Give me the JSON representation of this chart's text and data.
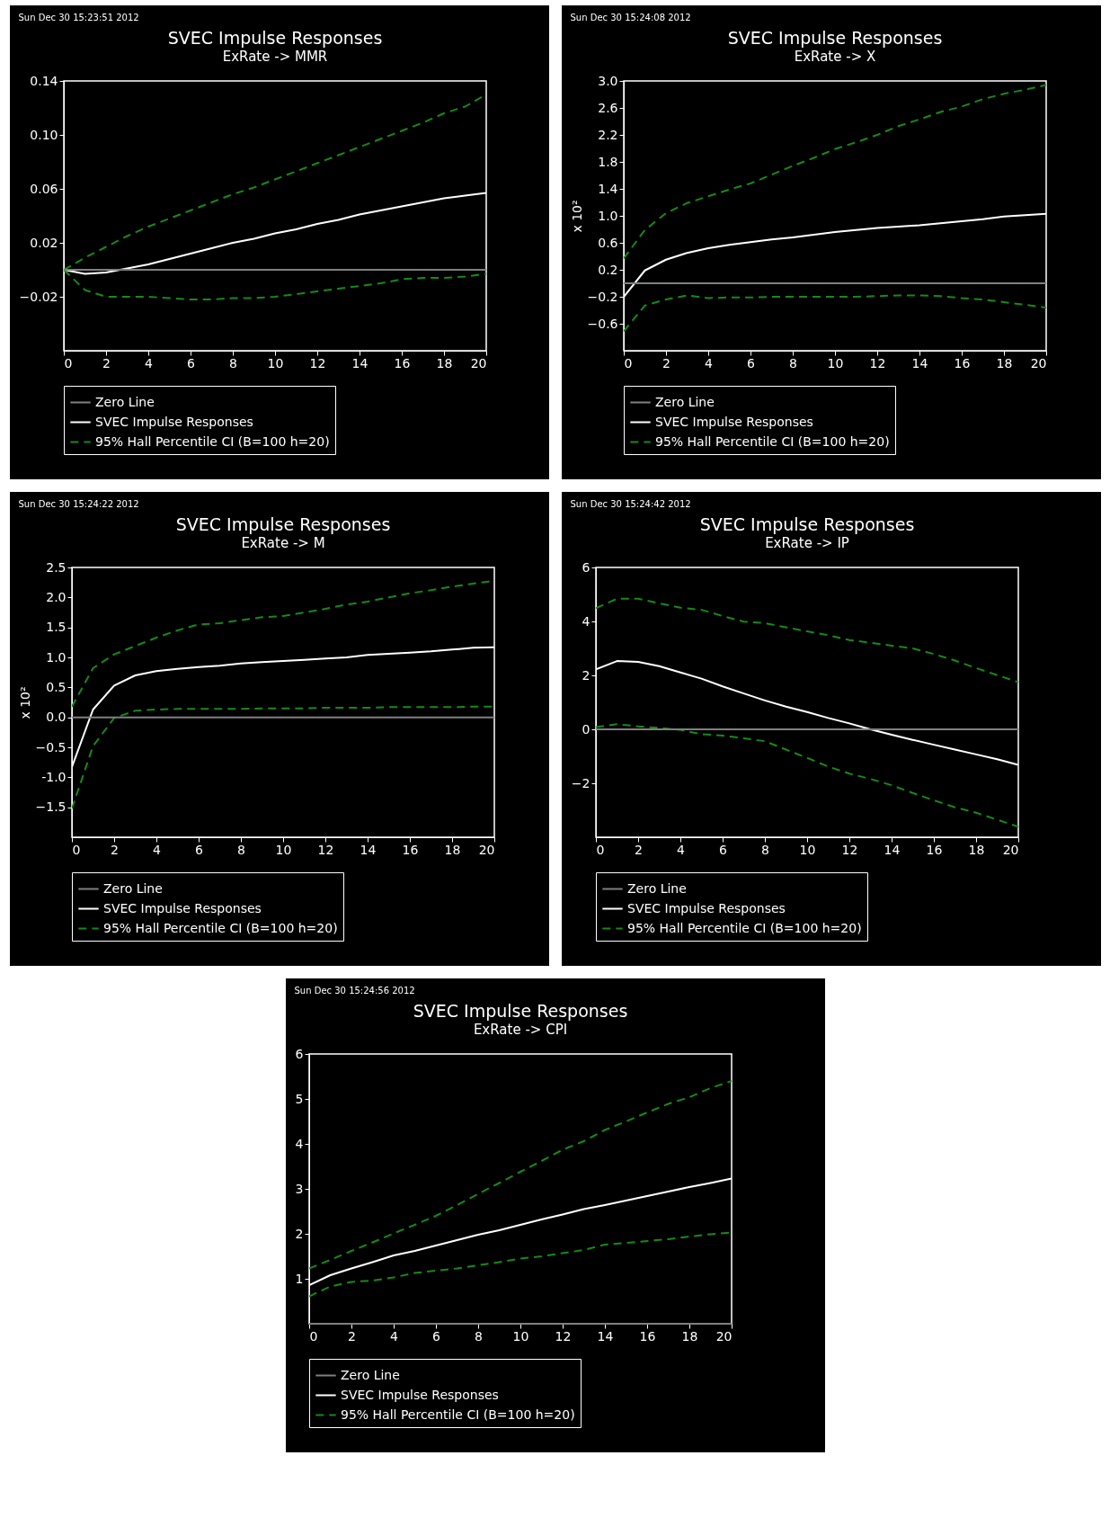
{
  "chart_data": [
    {
      "type": "line",
      "title": "SVEC Impulse Responses",
      "subtitle": "ExRate -> MMR",
      "annotations": [
        "Sun Dec 30 15:23:51 2012"
      ],
      "x": [
        0,
        1,
        2,
        3,
        4,
        5,
        6,
        7,
        8,
        9,
        10,
        11,
        12,
        13,
        14,
        15,
        16,
        17,
        18,
        19,
        20
      ],
      "xlim": [
        0,
        20
      ],
      "xticks": [
        0,
        2,
        4,
        6,
        8,
        10,
        12,
        14,
        16,
        18,
        20
      ],
      "ylim": [
        -0.06,
        0.14
      ],
      "yticks": [
        -0.02,
        0.02,
        0.06,
        {
          "value": 0.1,
          "label": "0.10"
        },
        0.14
      ],
      "legend": "bottom",
      "ref_lines": [
        {
          "axis": "y",
          "value": 0,
          "label": "Zero Line",
          "color": "#808080"
        }
      ],
      "series": [
        {
          "name": "SVEC Impulse Responses",
          "color": "#ffffff",
          "line_style": "solid",
          "values": [
            0,
            -0.003,
            -0.002,
            0.001,
            0.004,
            0.008,
            0.012,
            0.016,
            0.02,
            0.023,
            0.027,
            0.03,
            0.034,
            0.037,
            0.041,
            0.044,
            0.047,
            0.05,
            0.053,
            0.055,
            0.057
          ]
        },
        {
          "name": "95% Hall Percentile CI (B=100 h=20)",
          "color": "#178a17",
          "line_style": "dashed",
          "values": [
            0,
            0.009,
            0.017,
            0.025,
            0.032,
            0.038,
            0.044,
            0.05,
            0.056,
            0.061,
            0.067,
            0.073,
            0.079,
            0.085,
            0.091,
            0.097,
            0.103,
            0.109,
            0.116,
            0.121,
            0.13
          ]
        },
        {
          "color": "#178a17",
          "line_style": "dashed",
          "values": [
            0,
            -0.015,
            -0.02,
            -0.02,
            -0.02,
            -0.021,
            -0.022,
            -0.022,
            -0.021,
            -0.021,
            -0.02,
            -0.018,
            -0.016,
            -0.014,
            -0.012,
            -0.01,
            -0.007,
            -0.006,
            -0.006,
            -0.005,
            -0.003
          ]
        }
      ]
    },
    {
      "type": "line",
      "title": "SVEC Impulse Responses",
      "subtitle": "ExRate -> X",
      "ylabel": "x 10²",
      "annotations": [
        "Sun Dec 30 15:24:08 2012"
      ],
      "x": [
        0,
        1,
        2,
        3,
        4,
        5,
        6,
        7,
        8,
        9,
        10,
        11,
        12,
        13,
        14,
        15,
        16,
        17,
        18,
        19,
        20
      ],
      "xlim": [
        0,
        20
      ],
      "xticks": [
        0,
        2,
        4,
        6,
        8,
        10,
        12,
        14,
        16,
        18,
        20
      ],
      "ylim": [
        -1.0,
        3.0
      ],
      "yticks": [
        -0.6,
        -0.2,
        0.2,
        0.6,
        {
          "value": 1,
          "label": "1.0"
        },
        1.4,
        1.8,
        2.2,
        2.6,
        {
          "value": 3,
          "label": "3.0"
        }
      ],
      "legend": "bottom",
      "ref_lines": [
        {
          "axis": "y",
          "value": 0,
          "label": "Zero Line",
          "color": "#808080"
        }
      ],
      "series": [
        {
          "name": "SVEC Impulse Responses",
          "color": "#ffffff",
          "line_style": "solid",
          "values": [
            -0.2,
            0.19,
            0.35,
            0.45,
            0.52,
            0.57,
            0.61,
            0.65,
            0.68,
            0.72,
            0.76,
            0.79,
            0.82,
            0.84,
            0.86,
            0.89,
            0.92,
            0.95,
            0.99,
            1.01,
            1.03
          ]
        },
        {
          "name": "95% Hall Percentile CI (B=100 h=20)",
          "color": "#178a17",
          "line_style": "dashed",
          "values": [
            0.37,
            0.79,
            1.04,
            1.19,
            1.29,
            1.39,
            1.48,
            1.61,
            1.74,
            1.86,
            1.99,
            2.09,
            2.2,
            2.33,
            2.43,
            2.54,
            2.62,
            2.73,
            2.81,
            2.87,
            2.94
          ]
        },
        {
          "color": "#178a17",
          "line_style": "dashed",
          "values": [
            -0.71,
            -0.33,
            -0.24,
            -0.18,
            -0.22,
            -0.21,
            -0.21,
            -0.2,
            -0.2,
            -0.2,
            -0.2,
            -0.2,
            -0.19,
            -0.18,
            -0.18,
            -0.19,
            -0.22,
            -0.24,
            -0.28,
            -0.32,
            -0.36
          ]
        }
      ]
    },
    {
      "type": "line",
      "title": "SVEC Impulse Responses",
      "subtitle": "ExRate -> M",
      "ylabel": "x 10²",
      "annotations": [
        "Sun Dec 30 15:24:22 2012"
      ],
      "x": [
        0,
        1,
        2,
        3,
        4,
        5,
        6,
        7,
        8,
        9,
        10,
        11,
        12,
        13,
        14,
        15,
        16,
        17,
        18,
        19,
        20
      ],
      "xlim": [
        0,
        20
      ],
      "xticks": [
        0,
        2,
        4,
        6,
        8,
        10,
        12,
        14,
        16,
        18,
        20
      ],
      "ylim": [
        -2.0,
        2.5
      ],
      "yticks": [
        -1.5,
        {
          "value": -1,
          "label": "-1.0"
        },
        -0.5,
        {
          "value": 0,
          "label": "0.0"
        },
        0.5,
        {
          "value": 1,
          "label": "1.0"
        },
        1.5,
        {
          "value": 2,
          "label": "2.0"
        },
        2.5
      ],
      "legend": "bottom",
      "ref_lines": [
        {
          "axis": "y",
          "value": 0,
          "label": "Zero Line",
          "color": "#808080"
        }
      ],
      "series": [
        {
          "name": "SVEC Impulse Responses",
          "color": "#ffffff",
          "line_style": "solid",
          "values": [
            -0.83,
            0.13,
            0.53,
            0.7,
            0.77,
            0.81,
            0.84,
            0.86,
            0.9,
            0.92,
            0.94,
            0.96,
            0.98,
            1.0,
            1.04,
            1.06,
            1.08,
            1.1,
            1.13,
            1.16,
            1.17
          ]
        },
        {
          "name": "95% Hall Percentile CI (B=100 h=20)",
          "color": "#178a17",
          "line_style": "dashed",
          "values": [
            0.18,
            0.82,
            1.05,
            1.19,
            1.33,
            1.45,
            1.55,
            1.57,
            1.62,
            1.67,
            1.69,
            1.75,
            1.81,
            1.88,
            1.93,
            2.0,
            2.07,
            2.12,
            2.18,
            2.23,
            2.28
          ]
        },
        {
          "color": "#178a17",
          "line_style": "dashed",
          "values": [
            -1.52,
            -0.48,
            -0.01,
            0.11,
            0.13,
            0.14,
            0.14,
            0.14,
            0.14,
            0.15,
            0.15,
            0.15,
            0.16,
            0.16,
            0.16,
            0.17,
            0.17,
            0.17,
            0.17,
            0.18,
            0.18
          ]
        }
      ]
    },
    {
      "type": "line",
      "title": "SVEC Impulse Responses",
      "subtitle": "ExRate -> IP",
      "annotations": [
        "Sun Dec 30 15:24:42 2012"
      ],
      "x": [
        0,
        1,
        2,
        3,
        4,
        5,
        6,
        7,
        8,
        9,
        10,
        11,
        12,
        13,
        14,
        15,
        16,
        17,
        18,
        19,
        20
      ],
      "xlim": [
        0,
        20
      ],
      "xticks": [
        0,
        2,
        4,
        6,
        8,
        10,
        12,
        14,
        16,
        18,
        20
      ],
      "ylim": [
        -4,
        6
      ],
      "yticks": [
        -2,
        0,
        2,
        4,
        6
      ],
      "legend": "bottom",
      "ref_lines": [
        {
          "axis": "y",
          "value": 0,
          "label": "Zero Line",
          "color": "#808080"
        }
      ],
      "series": [
        {
          "name": "SVEC Impulse Responses",
          "color": "#ffffff",
          "line_style": "solid",
          "values": [
            2.22,
            2.53,
            2.5,
            2.34,
            2.11,
            1.88,
            1.59,
            1.33,
            1.07,
            0.84,
            0.64,
            0.42,
            0.22,
            0,
            -0.2,
            -0.39,
            -0.57,
            -0.75,
            -0.93,
            -1.11,
            -1.32
          ]
        },
        {
          "name": "95% Hall Percentile CI (B=100 h=20)",
          "color": "#178a17",
          "line_style": "dashed",
          "values": [
            4.49,
            4.84,
            4.84,
            4.67,
            4.51,
            4.43,
            4.2,
            3.99,
            3.94,
            3.78,
            3.63,
            3.49,
            3.31,
            3.21,
            3.1,
            3.0,
            2.79,
            2.55,
            2.27,
            2.01,
            1.75
          ]
        },
        {
          "color": "#178a17",
          "line_style": "dashed",
          "values": [
            0.08,
            0.19,
            0.11,
            0.05,
            -0.02,
            -0.18,
            -0.23,
            -0.33,
            -0.44,
            -0.75,
            -1.06,
            -1.38,
            -1.64,
            -1.84,
            -2.07,
            -2.36,
            -2.63,
            -2.89,
            -3.09,
            -3.35,
            -3.61
          ]
        }
      ]
    },
    {
      "type": "line",
      "title": "SVEC Impulse Responses",
      "subtitle": "ExRate -> CPI",
      "annotations": [
        "Sun Dec 30 15:24:56 2012"
      ],
      "x": [
        0,
        1,
        2,
        3,
        4,
        5,
        6,
        7,
        8,
        9,
        10,
        11,
        12,
        13,
        14,
        15,
        16,
        17,
        18,
        19,
        20
      ],
      "xlim": [
        0,
        20
      ],
      "xticks": [
        0,
        2,
        4,
        6,
        8,
        10,
        12,
        14,
        16,
        18,
        20
      ],
      "ylim": [
        0,
        6
      ],
      "yticks": [
        1,
        2,
        3,
        4,
        5,
        6
      ],
      "legend": "bottom",
      "ref_lines": [
        {
          "axis": "y",
          "value": 0,
          "label": "Zero Line",
          "color": "#808080"
        }
      ],
      "series": [
        {
          "name": "SVEC Impulse Responses",
          "color": "#ffffff",
          "line_style": "solid",
          "values": [
            0.86,
            1.08,
            1.23,
            1.37,
            1.52,
            1.62,
            1.74,
            1.86,
            1.98,
            2.08,
            2.2,
            2.32,
            2.43,
            2.55,
            2.64,
            2.74,
            2.84,
            2.94,
            3.04,
            3.13,
            3.23
          ]
        },
        {
          "name": "95% Hall Percentile CI (B=100 h=20)",
          "color": "#178a17",
          "line_style": "dashed",
          "values": [
            1.23,
            1.42,
            1.62,
            1.81,
            2.01,
            2.2,
            2.4,
            2.64,
            2.89,
            3.13,
            3.38,
            3.62,
            3.87,
            4.06,
            4.31,
            4.5,
            4.7,
            4.89,
            5.04,
            5.24,
            5.4
          ]
        },
        {
          "color": "#178a17",
          "line_style": "dashed",
          "values": [
            0.61,
            0.83,
            0.93,
            0.96,
            1.03,
            1.13,
            1.18,
            1.23,
            1.3,
            1.37,
            1.45,
            1.5,
            1.57,
            1.64,
            1.76,
            1.8,
            1.84,
            1.88,
            1.94,
            1.99,
            2.03
          ]
        }
      ]
    }
  ]
}
